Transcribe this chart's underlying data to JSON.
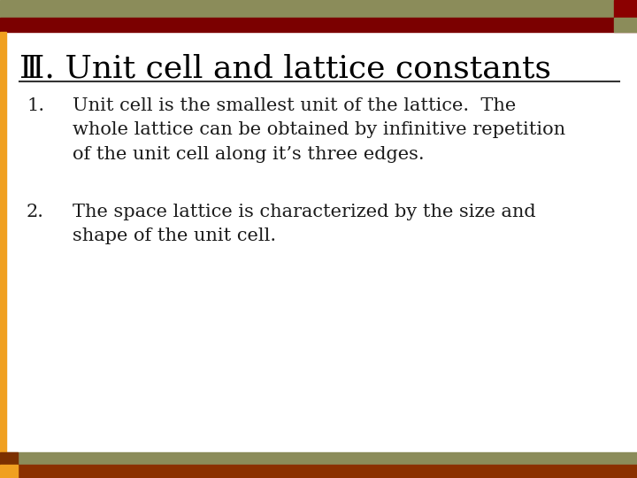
{
  "title": "Ⅲ. Unit cell and lattice constants",
  "bg_color": "#FFFFFF",
  "header_bar1_color": "#8B8C5A",
  "header_bar2_color": "#7B0000",
  "footer_bar1_color": "#8B8C5A",
  "footer_bar2_color": "#8B3000",
  "left_accent_color": "#F0A020",
  "corner_sq_top_right_dark": "#8B0000",
  "corner_sq_top_right_light": "#8B8C5A",
  "corner_sq_bottom_left_dark": "#7B3000",
  "corner_sq_bottom_left_orange": "#F0A020",
  "divider_color": "#333333",
  "title_color": "#000000",
  "title_fontsize": 26,
  "item1_number": "1.",
  "item1_text": "Unit cell is the smallest unit of the lattice.  The\nwhole lattice can be obtained by infinitive repetition\nof the unit cell along it’s three edges.",
  "item2_number": "2.",
  "item2_text": "The space lattice is characterized by the size and\nshape of the unit cell.",
  "item_fontsize": 15,
  "item_color": "#1a1a1a",
  "number_color": "#1a1a1a"
}
